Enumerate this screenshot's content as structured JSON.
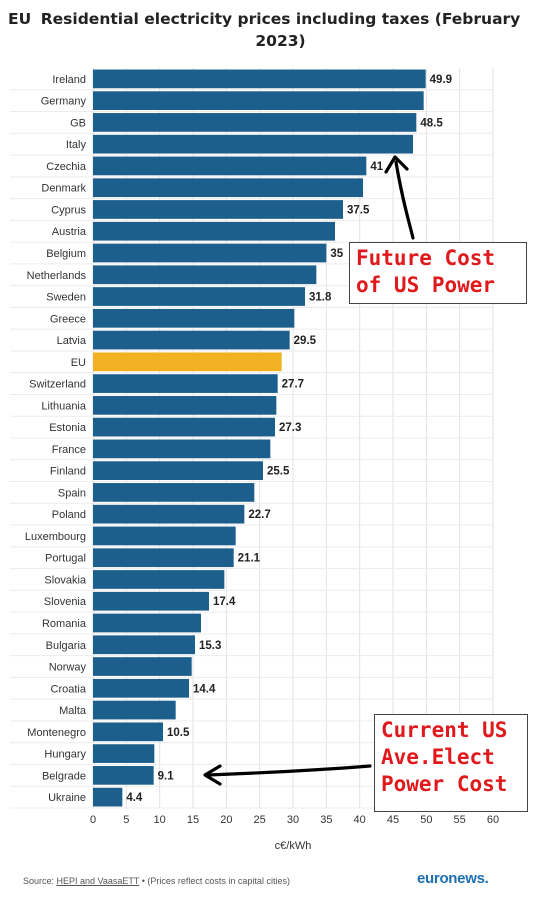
{
  "header": {
    "prefix": "EU",
    "title": "Residential electricity prices including taxes (February 2023)"
  },
  "chart_data": {
    "type": "bar",
    "orientation": "horizontal",
    "xlabel": "c€/kWh",
    "xlim": [
      0,
      60
    ],
    "xticks": [
      0,
      5,
      10,
      15,
      20,
      25,
      30,
      35,
      40,
      45,
      50,
      55,
      60
    ],
    "grid": true,
    "bar_color": "#1c5f8c",
    "highlight_color": "#f2b122",
    "highlight_category": "EU",
    "categories": [
      "Ireland",
      "Germany",
      "GB",
      "Italy",
      "Czechia",
      "Denmark",
      "Cyprus",
      "Austria",
      "Belgium",
      "Netherlands",
      "Sweden",
      "Greece",
      "Latvia",
      "EU",
      "Switzerland",
      "Lithuania",
      "Estonia",
      "France",
      "Finland",
      "Spain",
      "Poland",
      "Luxembourg",
      "Portugal",
      "Slovakia",
      "Slovenia",
      "Romania",
      "Bulgaria",
      "Norway",
      "Croatia",
      "Malta",
      "Montenegro",
      "Hungary",
      "Belgrade",
      "Ukraine"
    ],
    "values": [
      49.9,
      49.6,
      48.5,
      48,
      41,
      40.5,
      37.5,
      36.3,
      35,
      33.5,
      31.8,
      30.2,
      29.5,
      28.3,
      27.7,
      27.5,
      27.3,
      26.6,
      25.5,
      24.2,
      22.7,
      21.4,
      21.1,
      19.7,
      17.4,
      16.2,
      15.3,
      14.8,
      14.4,
      12.4,
      10.5,
      9.2,
      9.1,
      4.4
    ],
    "labels": [
      "49.9",
      "",
      "48.5",
      "",
      "41",
      "",
      "37.5",
      "",
      "35",
      "",
      "31.8",
      "",
      "29.5",
      "",
      "27.7",
      "",
      "27.3",
      "",
      "25.5",
      "",
      "22.7",
      "",
      "21.1",
      "",
      "17.4",
      "",
      "15.3",
      "",
      "14.4",
      "",
      "10.5",
      "",
      "9.1",
      "4.4"
    ]
  },
  "annotations": {
    "future": "Future Cost\nof US Power",
    "current": "Current US\nAve.Elect\nPower Cost"
  },
  "footer": {
    "source_prefix": "Source: ",
    "source_link": "HEPI and VaasaETT",
    "source_suffix": " • (Prices reflect costs in capital cities)",
    "brand": "euronews."
  }
}
